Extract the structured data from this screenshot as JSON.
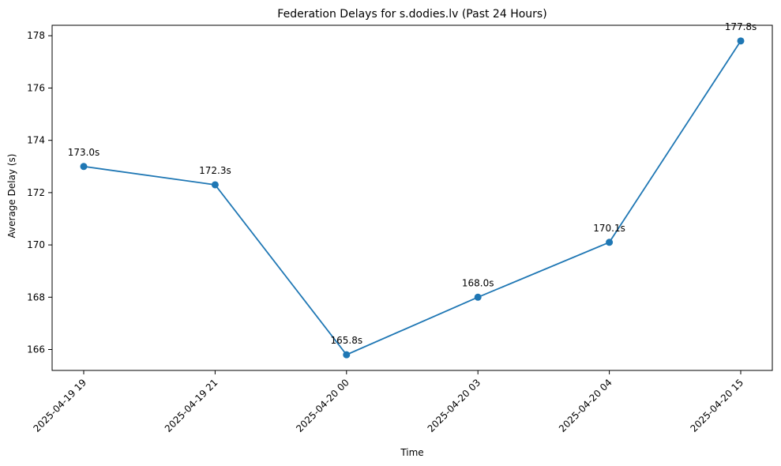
{
  "chart_data": {
    "type": "line",
    "title": "Federation Delays for s.dodies.lv (Past 24 Hours)",
    "xlabel": "Time",
    "ylabel": "Average Delay (s)",
    "categories": [
      "2025-04-19 19",
      "2025-04-19 21",
      "2025-04-20 00",
      "2025-04-20 03",
      "2025-04-20 04",
      "2025-04-20 15"
    ],
    "series": [
      {
        "values": [
          173.0,
          172.3,
          165.8,
          168.0,
          170.1,
          177.8
        ],
        "color": "#1f77b4"
      }
    ],
    "data_labels": [
      "173.0s",
      "172.3s",
      "165.8s",
      "168.0s",
      "170.1s",
      "177.8s"
    ],
    "ylim": [
      165.2,
      178.4
    ],
    "yticks": [
      166,
      168,
      170,
      172,
      174,
      176,
      178
    ],
    "grid": false,
    "legend": "none"
  }
}
